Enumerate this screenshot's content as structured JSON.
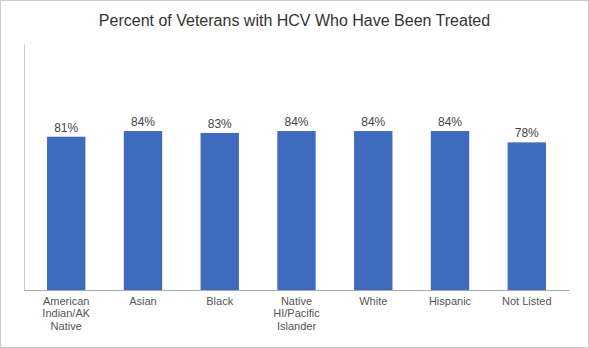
{
  "chart_data": {
    "type": "bar",
    "title": "Percent of Veterans with HCV Who Have Been Treated",
    "categories": [
      "American\nIndian/AK\nNative",
      "Asian",
      "Black",
      "Native\nHI/Pacific\nIslander",
      "White",
      "Hispanic",
      "Not Listed"
    ],
    "values": [
      81,
      84,
      83,
      84,
      84,
      84,
      78
    ],
    "value_labels": [
      "81%",
      "84%",
      "83%",
      "84%",
      "84%",
      "84%",
      "78%"
    ],
    "data_labels": true,
    "color": "#3F6BBF",
    "ylim": [
      0,
      130
    ],
    "grid": false,
    "tick_labels": "x"
  }
}
